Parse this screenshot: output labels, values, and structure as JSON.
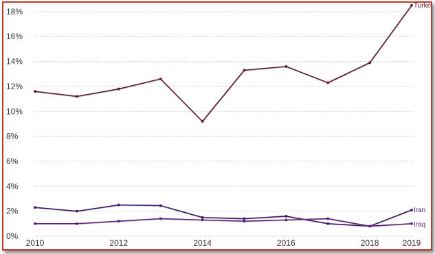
{
  "chart_data": {
    "type": "line",
    "title": "",
    "xlabel": "",
    "ylabel": "",
    "x": [
      2010,
      2011,
      2012,
      2013,
      2014,
      2015,
      2016,
      2017,
      2018,
      2019
    ],
    "x_tick_labels": [
      "2010",
      "2012",
      "2014",
      "2016",
      "2018",
      "2019"
    ],
    "y_tick_labels": [
      "0%",
      "2%",
      "4%",
      "6%",
      "8%",
      "10%",
      "12%",
      "14%",
      "16%",
      "18%"
    ],
    "xlim": [
      2010,
      2019
    ],
    "ylim": [
      0,
      18.6
    ],
    "grid": true,
    "legend": "inline labels at line ends",
    "series": [
      {
        "name": "Turkey",
        "color": "#5c1a26",
        "values": [
          11.6,
          11.2,
          11.8,
          12.6,
          9.2,
          13.3,
          13.6,
          12.3,
          13.9,
          18.5
        ]
      },
      {
        "name": "Iran",
        "color": "#3a1866",
        "values": [
          2.3,
          2.0,
          2.5,
          2.45,
          1.5,
          1.4,
          1.6,
          1.0,
          0.8,
          2.1
        ]
      },
      {
        "name": "Iraq",
        "color": "#5a1f78",
        "values": [
          1.0,
          1.0,
          1.2,
          1.4,
          1.3,
          1.2,
          1.3,
          1.4,
          0.8,
          1.0
        ]
      }
    ]
  }
}
